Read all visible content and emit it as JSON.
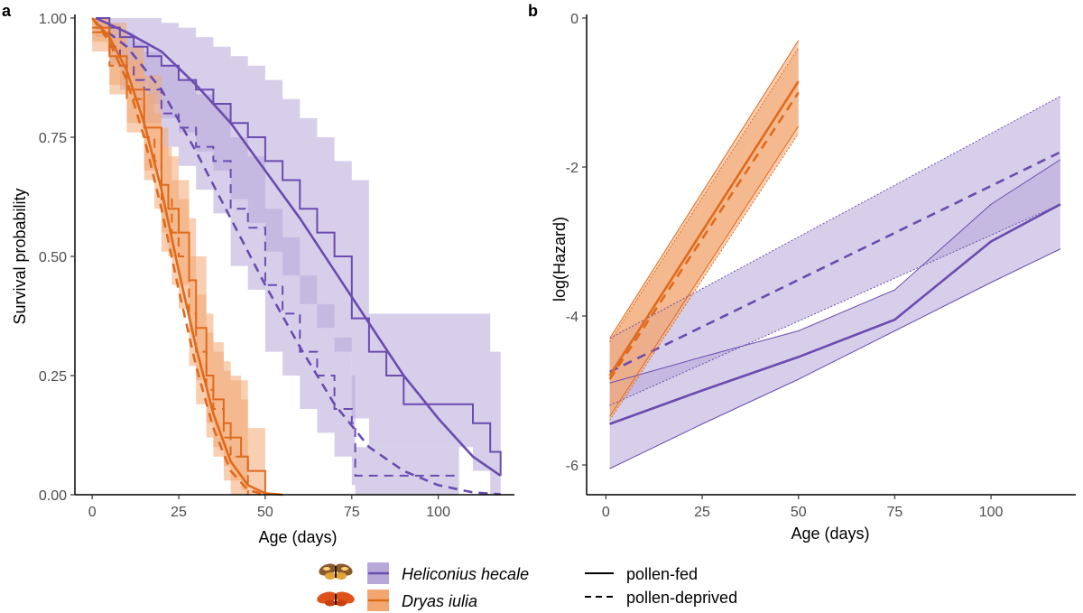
{
  "colors": {
    "hecale": "#6a4bb0",
    "hecale_band": "#b7a8d9",
    "iulia": "#e06a1b",
    "iulia_band": "#f2a772",
    "axis": "#000000"
  },
  "legend": {
    "species": [
      {
        "label": "Heliconius hecale",
        "color_key": "hecale",
        "icon": "butterfly-icon-hecale"
      },
      {
        "label": "Dryas iulia",
        "color_key": "iulia",
        "icon": "butterfly-icon-iulia"
      }
    ],
    "treatments": [
      {
        "label": "pollen-fed",
        "line": "solid"
      },
      {
        "label": "pollen-deprived",
        "line": "dashed"
      }
    ]
  },
  "chart_data": [
    {
      "panel": "a",
      "type": "line",
      "xlabel": "Age (days)",
      "ylabel": "Survival probability",
      "xlim": [
        -5,
        122
      ],
      "ylim": [
        0,
        1
      ],
      "xticks": [
        0,
        25,
        50,
        75,
        100
      ],
      "xtick_labels": [
        "0",
        "25",
        "50",
        "75",
        "100"
      ],
      "yticks": [
        0,
        0.25,
        0.5,
        0.75,
        1.0
      ],
      "ytick_labels": [
        "0.00",
        "0.25",
        "0.50",
        "0.75",
        "1.00"
      ],
      "grid": false,
      "series": [
        {
          "species": "Heliconius hecale",
          "treatment": "pollen-fed",
          "kind": "km",
          "x": [
            1,
            5,
            8,
            12,
            16,
            20,
            25,
            30,
            35,
            40,
            45,
            50,
            55,
            60,
            65,
            70,
            75,
            80,
            85,
            90,
            95,
            100,
            105,
            110,
            115,
            118
          ],
          "y": [
            1.0,
            0.98,
            0.96,
            0.94,
            0.92,
            0.9,
            0.87,
            0.85,
            0.82,
            0.78,
            0.75,
            0.7,
            0.66,
            0.6,
            0.55,
            0.5,
            0.37,
            0.3,
            0.25,
            0.19,
            0.19,
            0.19,
            0.19,
            0.15,
            0.09,
            0.04
          ],
          "lower": [
            1.0,
            0.95,
            0.9,
            0.86,
            0.82,
            0.79,
            0.76,
            0.72,
            0.68,
            0.62,
            0.57,
            0.51,
            0.46,
            0.4,
            0.35,
            0.3,
            0.16,
            0.1,
            0.1,
            0.1,
            0.1,
            0.1,
            0.1,
            0.05,
            0.0,
            0.0
          ],
          "upper": [
            1.0,
            1.0,
            1.0,
            1.0,
            1.0,
            0.99,
            0.98,
            0.96,
            0.94,
            0.92,
            0.9,
            0.87,
            0.83,
            0.79,
            0.75,
            0.7,
            0.66,
            0.38,
            0.38,
            0.38,
            0.38,
            0.38,
            0.38,
            0.38,
            0.3,
            0.25
          ]
        },
        {
          "species": "Heliconius hecale",
          "treatment": "pollen-deprived",
          "kind": "km",
          "x": [
            1,
            5,
            8,
            12,
            15,
            20,
            25,
            30,
            35,
            40,
            45,
            50,
            55,
            60,
            65,
            70,
            75,
            76,
            80,
            90,
            100,
            106
          ],
          "y": [
            0.98,
            0.94,
            0.9,
            0.87,
            0.85,
            0.8,
            0.77,
            0.73,
            0.7,
            0.6,
            0.56,
            0.44,
            0.38,
            0.3,
            0.25,
            0.18,
            0.15,
            0.04,
            0.04,
            0.04,
            0.04,
            0.04
          ],
          "lower": [
            0.96,
            0.9,
            0.85,
            0.81,
            0.78,
            0.73,
            0.69,
            0.64,
            0.59,
            0.48,
            0.43,
            0.3,
            0.25,
            0.18,
            0.13,
            0.08,
            0.02,
            0.0,
            0.0,
            0.0,
            0.0,
            0.0
          ],
          "upper": [
            1.0,
            0.99,
            0.97,
            0.95,
            0.93,
            0.9,
            0.87,
            0.84,
            0.82,
            0.75,
            0.71,
            0.6,
            0.54,
            0.46,
            0.4,
            0.33,
            0.25,
            0.1,
            0.1,
            0.1,
            0.1,
            0.1
          ]
        },
        {
          "species": "Heliconius hecale",
          "treatment": "pollen-fed",
          "kind": "fit",
          "x": [
            1,
            10,
            20,
            30,
            40,
            50,
            60,
            70,
            80,
            90,
            100,
            110,
            118
          ],
          "y": [
            1.0,
            0.97,
            0.93,
            0.86,
            0.78,
            0.68,
            0.58,
            0.47,
            0.36,
            0.25,
            0.16,
            0.08,
            0.04
          ]
        },
        {
          "species": "Heliconius hecale",
          "treatment": "pollen-deprived",
          "kind": "fit",
          "x": [
            1,
            10,
            20,
            30,
            40,
            50,
            60,
            70,
            80,
            90,
            100,
            110,
            118
          ],
          "y": [
            0.99,
            0.94,
            0.85,
            0.72,
            0.58,
            0.44,
            0.31,
            0.19,
            0.1,
            0.05,
            0.02,
            0.005,
            0.001
          ]
        },
        {
          "species": "Dryas iulia",
          "treatment": "pollen-fed",
          "kind": "km",
          "x": [
            0,
            5,
            10,
            15,
            20,
            22,
            25,
            28,
            30,
            33,
            35,
            38,
            40,
            43,
            45,
            50
          ],
          "y": [
            0.98,
            0.92,
            0.85,
            0.77,
            0.65,
            0.6,
            0.55,
            0.45,
            0.35,
            0.25,
            0.2,
            0.15,
            0.12,
            0.08,
            0.05,
            0.0
          ],
          "lower": [
            0.95,
            0.86,
            0.78,
            0.68,
            0.55,
            0.5,
            0.44,
            0.34,
            0.24,
            0.15,
            0.1,
            0.06,
            0.03,
            0.01,
            0.0,
            0.0
          ],
          "upper": [
            1.0,
            0.99,
            0.94,
            0.88,
            0.77,
            0.71,
            0.66,
            0.58,
            0.5,
            0.38,
            0.32,
            0.28,
            0.25,
            0.2,
            0.14,
            0.05
          ]
        },
        {
          "species": "Dryas iulia",
          "treatment": "pollen-deprived",
          "kind": "km",
          "x": [
            0,
            5,
            10,
            15,
            18,
            20,
            23,
            25,
            28,
            30,
            33,
            35,
            38,
            40,
            45
          ],
          "y": [
            0.97,
            0.9,
            0.83,
            0.75,
            0.7,
            0.62,
            0.55,
            0.5,
            0.38,
            0.3,
            0.22,
            0.18,
            0.12,
            0.08,
            0.0
          ],
          "lower": [
            0.93,
            0.84,
            0.76,
            0.66,
            0.6,
            0.51,
            0.44,
            0.39,
            0.27,
            0.19,
            0.12,
            0.08,
            0.03,
            0.0,
            0.0
          ],
          "upper": [
            1.0,
            0.96,
            0.91,
            0.84,
            0.8,
            0.73,
            0.66,
            0.62,
            0.5,
            0.42,
            0.34,
            0.3,
            0.26,
            0.24,
            0.1
          ]
        },
        {
          "species": "Dryas iulia",
          "treatment": "pollen-fed",
          "kind": "fit",
          "x": [
            0,
            5,
            10,
            15,
            20,
            25,
            30,
            35,
            40,
            45,
            50,
            55
          ],
          "y": [
            1.0,
            0.96,
            0.89,
            0.78,
            0.64,
            0.47,
            0.31,
            0.17,
            0.07,
            0.02,
            0.003,
            0.0
          ]
        },
        {
          "species": "Dryas iulia",
          "treatment": "pollen-deprived",
          "kind": "fit",
          "x": [
            0,
            5,
            10,
            15,
            20,
            25,
            30,
            35,
            40,
            45,
            50
          ],
          "y": [
            1.0,
            0.95,
            0.87,
            0.75,
            0.6,
            0.43,
            0.27,
            0.14,
            0.05,
            0.01,
            0.0
          ]
        }
      ]
    },
    {
      "panel": "b",
      "type": "line",
      "xlabel": "Age (days)",
      "ylabel": "log(Hazard)",
      "xlim": [
        -5,
        122
      ],
      "ylim": [
        -6.4,
        0
      ],
      "xticks": [
        0,
        25,
        50,
        75,
        100
      ],
      "xtick_labels": [
        "0",
        "25",
        "50",
        "75",
        "100"
      ],
      "yticks": [
        0,
        -2,
        -4,
        -6
      ],
      "ytick_labels": [
        "0",
        "-2",
        "-4",
        "-6"
      ],
      "grid": false,
      "series": [
        {
          "species": "Heliconius hecale",
          "treatment": "pollen-fed",
          "x": [
            1,
            25,
            50,
            75,
            100,
            118
          ],
          "y": [
            -5.45,
            -5.0,
            -4.55,
            -4.05,
            -3.0,
            -2.5
          ],
          "lower": [
            -6.05,
            -5.45,
            -4.85,
            -4.2,
            -3.55,
            -3.1
          ],
          "upper": [
            -4.9,
            -4.55,
            -4.2,
            -3.65,
            -2.5,
            -1.9
          ]
        },
        {
          "species": "Heliconius hecale",
          "treatment": "pollen-deprived",
          "x": [
            1,
            118
          ],
          "y": [
            -4.75,
            -1.8
          ],
          "lower": [
            -5.2,
            -2.5
          ],
          "upper": [
            -4.3,
            -1.05
          ]
        },
        {
          "species": "Dryas iulia",
          "treatment": "pollen-fed",
          "x": [
            1,
            50
          ],
          "y": [
            -4.8,
            -0.85
          ],
          "lower": [
            -5.35,
            -1.45
          ],
          "upper": [
            -4.3,
            -0.3
          ]
        },
        {
          "species": "Dryas iulia",
          "treatment": "pollen-deprived",
          "x": [
            1,
            50
          ],
          "y": [
            -4.85,
            -1.0
          ],
          "lower": [
            -5.4,
            -1.55
          ],
          "upper": [
            -4.35,
            -0.4
          ]
        }
      ]
    }
  ]
}
